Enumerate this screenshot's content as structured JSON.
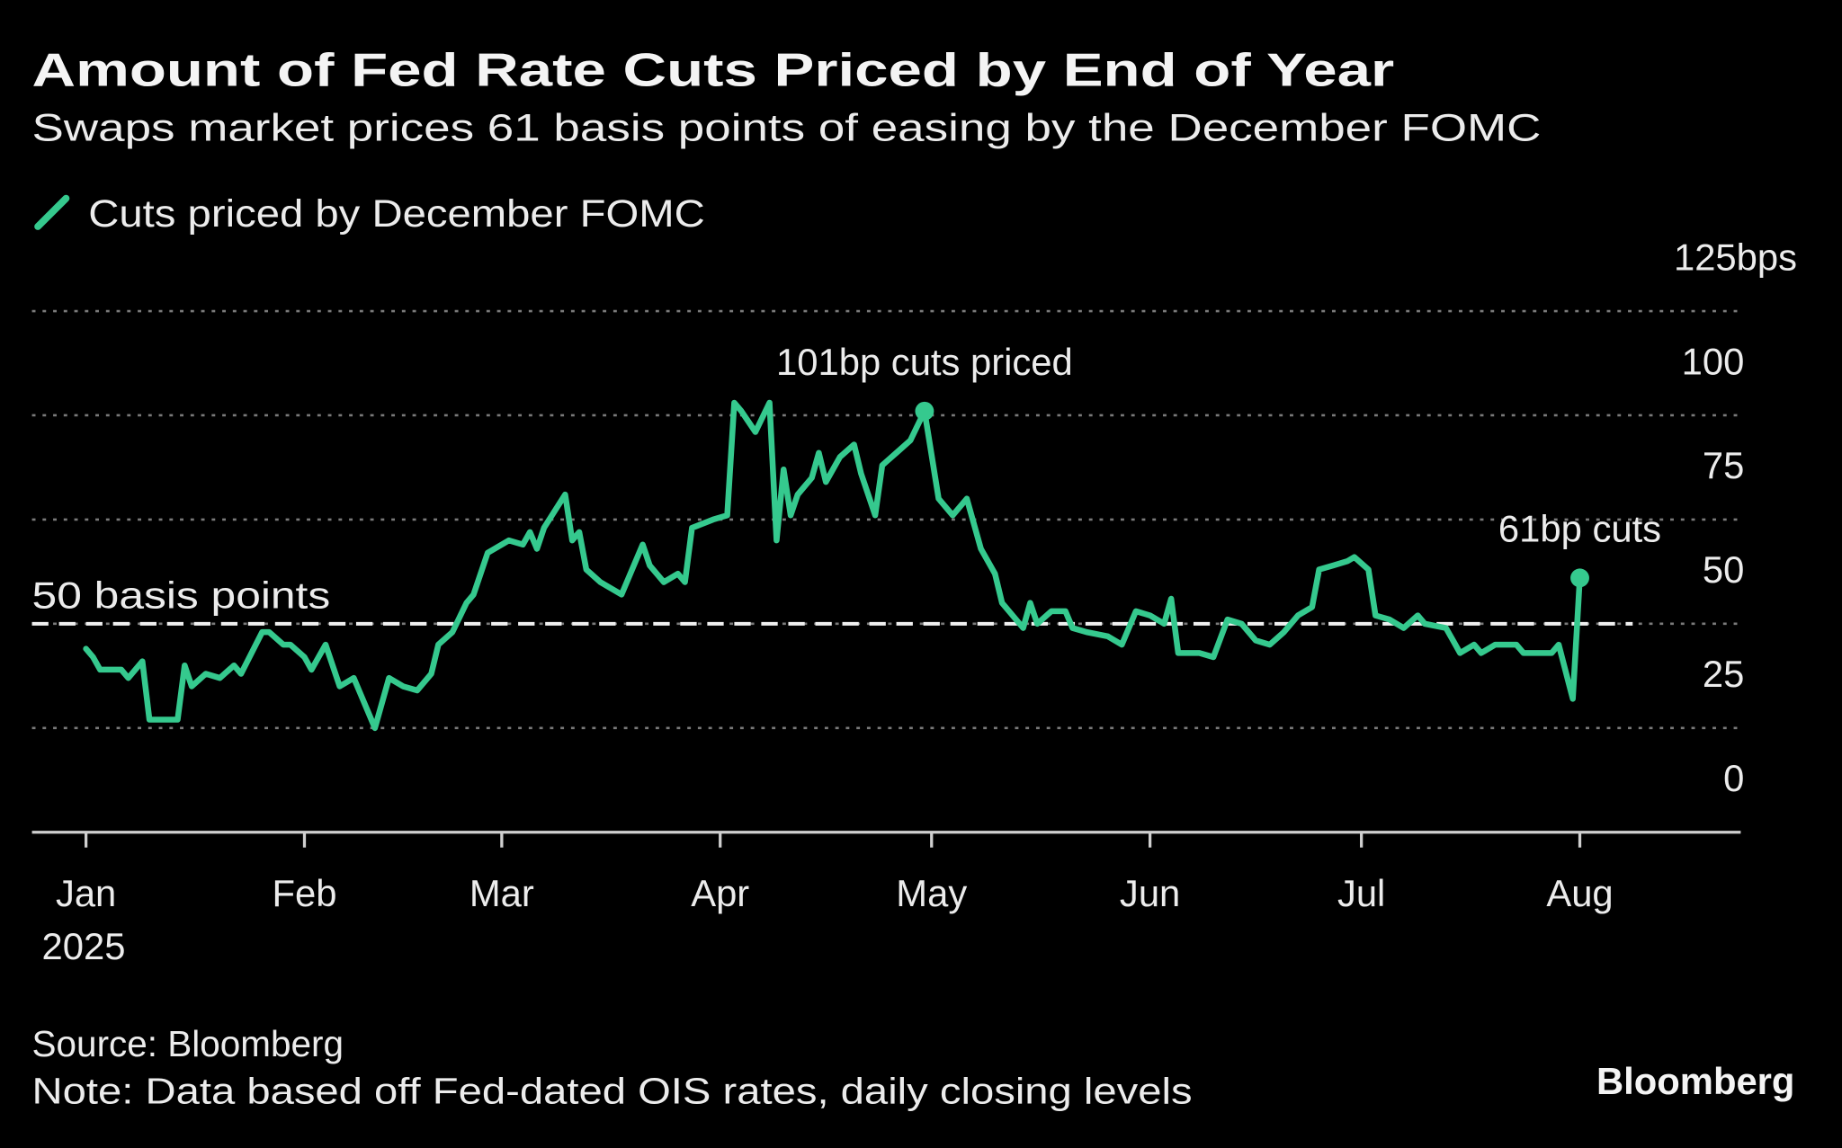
{
  "title": "Amount of Fed Rate Cuts Priced by End of Year",
  "subtitle": "Swaps market prices 61 basis points of easing by the December FOMC",
  "source": "Source: Bloomberg",
  "note": "Note: Data based off Fed-dated OIS rates, daily closing levels",
  "logo": "Bloomberg",
  "colors": {
    "background": "#000000",
    "series": "#35c98e",
    "text": "#ececec",
    "grid": "#7a7a7a"
  },
  "chart_data": {
    "type": "line",
    "title": "Amount of Fed Rate Cuts Priced by End of Year",
    "subtitle": "Swaps market prices 61 basis points of easing by the December FOMC",
    "legend_position": "top-left",
    "grid": true,
    "ylim": [
      0,
      125
    ],
    "y_ticks": [
      0,
      25,
      50,
      75,
      100,
      125
    ],
    "y_tick_labels": [
      "0",
      "25",
      "50",
      "75",
      "100",
      "125bps"
    ],
    "y_axis_side": "right",
    "x_ticks": [
      "2025-01-01",
      "2025-02-01",
      "2025-03-01",
      "2025-04-01",
      "2025-05-01",
      "2025-06-01",
      "2025-07-01",
      "2025-08-01"
    ],
    "x_tick_labels": [
      "Jan",
      "Feb",
      "Mar",
      "Apr",
      "May",
      "Jun",
      "Jul",
      "Aug"
    ],
    "x_year_label": "2025",
    "reference_line": {
      "value": 50,
      "label": "50 basis points",
      "style": "dashed"
    },
    "annotations": [
      {
        "date": "2025-04-30",
        "value": 101,
        "label": "101bp cuts priced"
      },
      {
        "date": "2025-08-01",
        "value": 61,
        "label": "61bp cuts"
      }
    ],
    "series": [
      {
        "name": "Cuts priced by December FOMC",
        "x": [
          "2025-01-01",
          "2025-01-02",
          "2025-01-03",
          "2025-01-06",
          "2025-01-07",
          "2025-01-09",
          "2025-01-10",
          "2025-01-11",
          "2025-01-14",
          "2025-01-15",
          "2025-01-16",
          "2025-01-18",
          "2025-01-20",
          "2025-01-22",
          "2025-01-23",
          "2025-01-26",
          "2025-01-27",
          "2025-01-29",
          "2025-01-30",
          "2025-02-01",
          "2025-02-02",
          "2025-02-04",
          "2025-02-06",
          "2025-02-08",
          "2025-02-09",
          "2025-02-11",
          "2025-02-13",
          "2025-02-15",
          "2025-02-17",
          "2025-02-19",
          "2025-02-20",
          "2025-02-22",
          "2025-02-24",
          "2025-02-25",
          "2025-02-27",
          "2025-03-02",
          "2025-03-04",
          "2025-03-05",
          "2025-03-06",
          "2025-03-07",
          "2025-03-10",
          "2025-03-11",
          "2025-03-12",
          "2025-03-13",
          "2025-03-15",
          "2025-03-18",
          "2025-03-21",
          "2025-03-22",
          "2025-03-24",
          "2025-03-26",
          "2025-03-27",
          "2025-03-28",
          "2025-03-31",
          "2025-04-02",
          "2025-04-03",
          "2025-04-04",
          "2025-04-06",
          "2025-04-08",
          "2025-04-09",
          "2025-04-10",
          "2025-04-11",
          "2025-04-12",
          "2025-04-14",
          "2025-04-15",
          "2025-04-16",
          "2025-04-18",
          "2025-04-20",
          "2025-04-21",
          "2025-04-23",
          "2025-04-24",
          "2025-04-26",
          "2025-04-28",
          "2025-04-30",
          "2025-05-02",
          "2025-05-04",
          "2025-05-06",
          "2025-05-08",
          "2025-05-10",
          "2025-05-11",
          "2025-05-14",
          "2025-05-15",
          "2025-05-16",
          "2025-05-18",
          "2025-05-20",
          "2025-05-21",
          "2025-05-23",
          "2025-05-26",
          "2025-05-28",
          "2025-05-30",
          "2025-06-01",
          "2025-06-03",
          "2025-06-04",
          "2025-06-05",
          "2025-06-08",
          "2025-06-10",
          "2025-06-12",
          "2025-06-14",
          "2025-06-16",
          "2025-06-18",
          "2025-06-20",
          "2025-06-22",
          "2025-06-24",
          "2025-06-25",
          "2025-06-27",
          "2025-06-29",
          "2025-06-30",
          "2025-07-02",
          "2025-07-03",
          "2025-07-05",
          "2025-07-07",
          "2025-07-09",
          "2025-07-10",
          "2025-07-13",
          "2025-07-14",
          "2025-07-15",
          "2025-07-17",
          "2025-07-18",
          "2025-07-20",
          "2025-07-23",
          "2025-07-24",
          "2025-07-28",
          "2025-07-29",
          "2025-07-31",
          "2025-08-01"
        ],
        "values": [
          44,
          42,
          39,
          39,
          37,
          41,
          27,
          27,
          27,
          40,
          35,
          38,
          37,
          40,
          38,
          48,
          48,
          45,
          45,
          42,
          39,
          45,
          35,
          37,
          33,
          25,
          37,
          35,
          34,
          38,
          45,
          48,
          55,
          57,
          67,
          70,
          69,
          72,
          68,
          73,
          81,
          70,
          72,
          63,
          60,
          57,
          69,
          64,
          60,
          62,
          60,
          73,
          75,
          76,
          103,
          101,
          96,
          103,
          70,
          87,
          76,
          81,
          85,
          91,
          84,
          90,
          93,
          86,
          76,
          88,
          91,
          94,
          101,
          80,
          76,
          80,
          68,
          62,
          55,
          49,
          55,
          50,
          53,
          53,
          49,
          48,
          47,
          45,
          53,
          52,
          50,
          56,
          43,
          43,
          42,
          51,
          50,
          46,
          45,
          48,
          52,
          54,
          63,
          64,
          65,
          66,
          63,
          52,
          51,
          49,
          52,
          50,
          49,
          46,
          43,
          45,
          43,
          45,
          45,
          43,
          43,
          45,
          32,
          61
        ]
      }
    ]
  }
}
